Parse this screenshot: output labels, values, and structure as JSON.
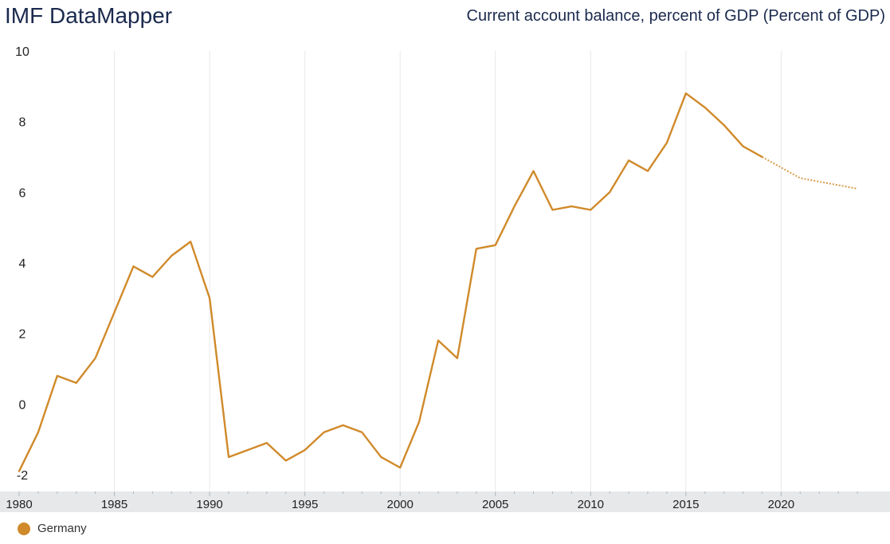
{
  "header": {
    "brand": "IMF DataMapper",
    "indicator_title": "Current account balance, percent of GDP (Percent of GDP)"
  },
  "colors": {
    "series": "#d08a2a",
    "grid": "#e8e8e8",
    "axis_band": "#e6e8ea",
    "text": "#1b2a4e"
  },
  "chart_data": {
    "type": "line",
    "title": "Current account balance, percent of GDP (Percent of GDP)",
    "xlabel": "",
    "ylabel": "",
    "xlim": [
      1980,
      2024
    ],
    "ylim": [
      -2,
      10
    ],
    "x_ticks": [
      1980,
      1985,
      1990,
      1995,
      2000,
      2005,
      2010,
      2015,
      2020
    ],
    "y_ticks": [
      -2,
      0,
      2,
      4,
      6,
      8,
      10
    ],
    "grid": "vertical",
    "legend_position": "bottom-left",
    "series": [
      {
        "name": "Germany",
        "color": "#d08a2a",
        "actual": [
          [
            1980,
            -1.9
          ],
          [
            1981,
            -0.8
          ],
          [
            1982,
            0.8
          ],
          [
            1983,
            0.6
          ],
          [
            1984,
            1.3
          ],
          [
            1985,
            2.6
          ],
          [
            1986,
            3.9
          ],
          [
            1987,
            3.6
          ],
          [
            1988,
            4.2
          ],
          [
            1989,
            4.6
          ],
          [
            1990,
            3.0
          ],
          [
            1991,
            -1.5
          ],
          [
            1992,
            -1.3
          ],
          [
            1993,
            -1.1
          ],
          [
            1994,
            -1.6
          ],
          [
            1995,
            -1.3
          ],
          [
            1996,
            -0.8
          ],
          [
            1997,
            -0.6
          ],
          [
            1998,
            -0.8
          ],
          [
            1999,
            -1.5
          ],
          [
            2000,
            -1.8
          ],
          [
            2001,
            -0.5
          ],
          [
            2002,
            1.8
          ],
          [
            2003,
            1.3
          ],
          [
            2004,
            4.4
          ],
          [
            2005,
            4.5
          ],
          [
            2006,
            5.6
          ],
          [
            2007,
            6.6
          ],
          [
            2008,
            5.5
          ],
          [
            2009,
            5.6
          ],
          [
            2010,
            5.5
          ],
          [
            2011,
            6.0
          ],
          [
            2012,
            6.9
          ],
          [
            2013,
            6.6
          ],
          [
            2014,
            7.4
          ],
          [
            2015,
            8.8
          ],
          [
            2016,
            8.4
          ],
          [
            2017,
            7.9
          ],
          [
            2018,
            7.3
          ],
          [
            2019,
            7.0
          ]
        ],
        "projection": [
          [
            2019,
            7.0
          ],
          [
            2020,
            6.7
          ],
          [
            2021,
            6.4
          ],
          [
            2022,
            6.3
          ],
          [
            2023,
            6.2
          ],
          [
            2024,
            6.1
          ]
        ]
      }
    ]
  }
}
